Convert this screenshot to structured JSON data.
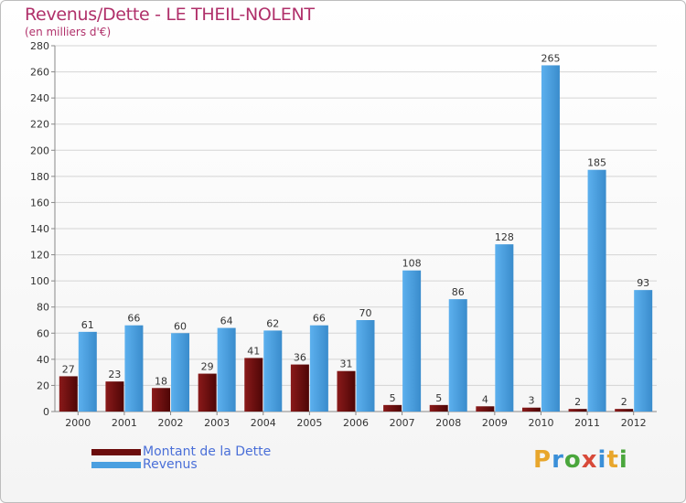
{
  "title": "Revenus/Dette - LE THEIL-NOLENT",
  "subtitle": "(en milliers d'€)",
  "colors": {
    "dette": "#6b0c0c",
    "revenus": "#4a9fe0",
    "title": "#b0306a",
    "legend_text": "#4a6fd8"
  },
  "legend": [
    {
      "label": "Montant de la Dette",
      "color": "#6b0c0c"
    },
    {
      "label": "Revenus",
      "color": "#4a9fe0"
    }
  ],
  "logo": {
    "letters": [
      "P",
      "r",
      "o",
      "x",
      "i",
      "t",
      "i"
    ],
    "colors": [
      "#e8a62c",
      "#3a8fd8",
      "#4aa63c",
      "#d84a3a",
      "#3a8fd8",
      "#e8a62c",
      "#4aa63c"
    ]
  },
  "chart_data": {
    "type": "bar",
    "title": "Revenus/Dette - LE THEIL-NOLENT",
    "ylabel": "(en milliers d'€)",
    "ylim": [
      0,
      280
    ],
    "yticks": [
      0,
      20,
      40,
      60,
      80,
      100,
      120,
      140,
      160,
      180,
      200,
      220,
      240,
      260,
      280
    ],
    "categories": [
      "2000",
      "2001",
      "2002",
      "2003",
      "2004",
      "2005",
      "2006",
      "2007",
      "2008",
      "2009",
      "2010",
      "2011",
      "2012"
    ],
    "series": [
      {
        "name": "Montant de la Dette",
        "values": [
          27,
          23,
          18,
          29,
          41,
          36,
          31,
          5,
          5,
          4,
          3,
          2,
          2
        ]
      },
      {
        "name": "Revenus",
        "values": [
          61,
          66,
          60,
          64,
          62,
          66,
          70,
          108,
          86,
          128,
          265,
          185,
          93
        ]
      }
    ],
    "legend_position": "bottom-left",
    "grid": true
  }
}
